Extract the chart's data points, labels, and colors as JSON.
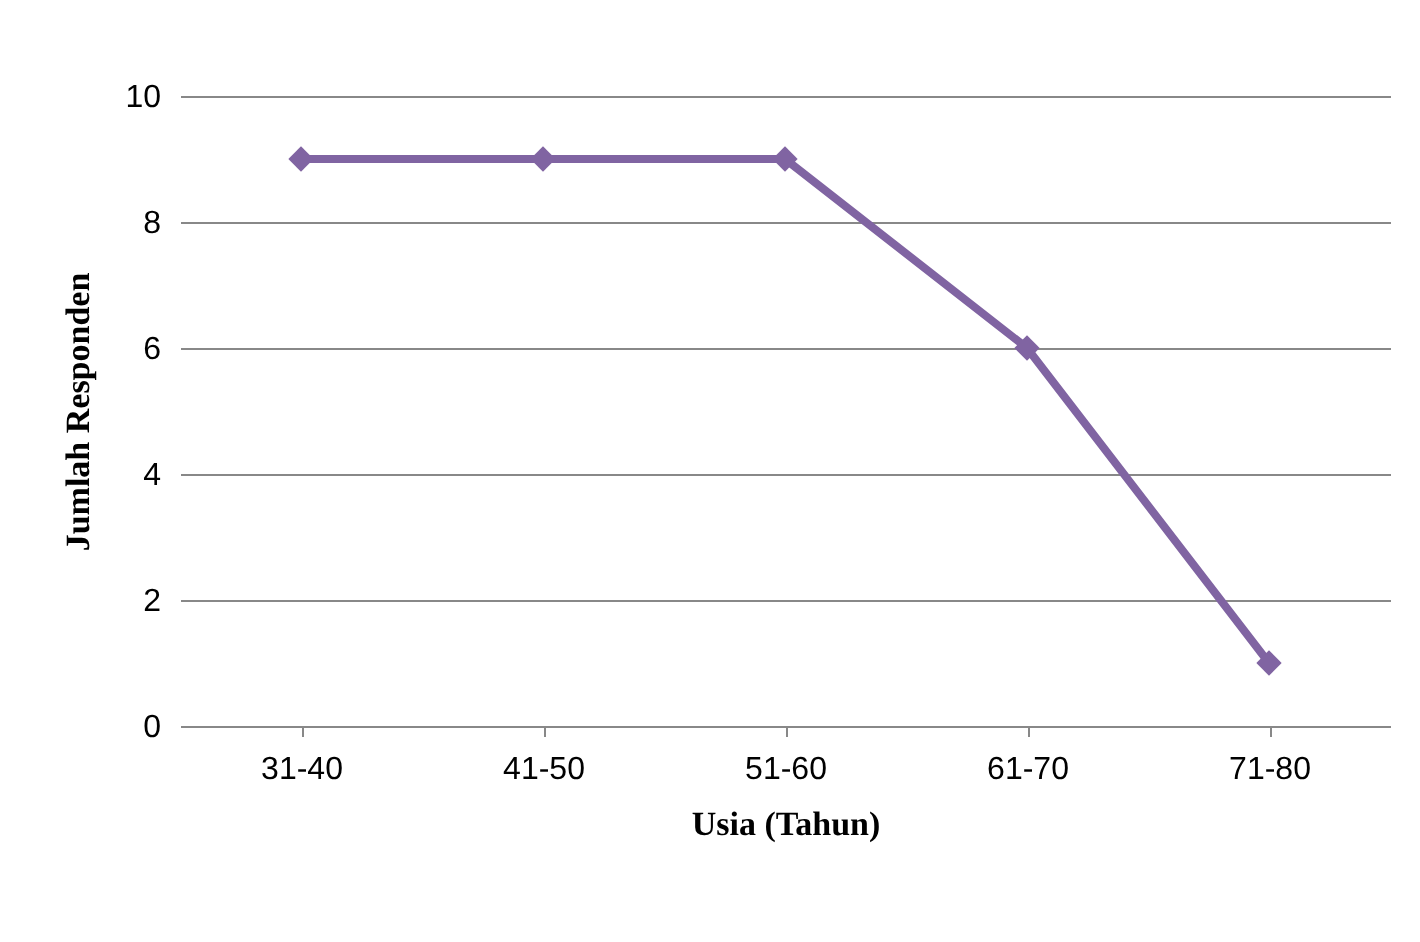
{
  "chart_data": {
    "type": "line",
    "xlabel": "Usia (Tahun)",
    "ylabel": "Jumlah Responden",
    "categories": [
      "31-40",
      "41-50",
      "51-60",
      "61-70",
      "71-80"
    ],
    "series": [
      {
        "color": "#8064a2",
        "values": [
          9,
          9,
          9,
          6,
          1
        ]
      }
    ],
    "ylim": [
      0,
      10
    ],
    "yticks": [
      0,
      2,
      4,
      6,
      8,
      10
    ],
    "grid": "y",
    "legend": false,
    "marker": "diamond",
    "line_style": "solid"
  }
}
